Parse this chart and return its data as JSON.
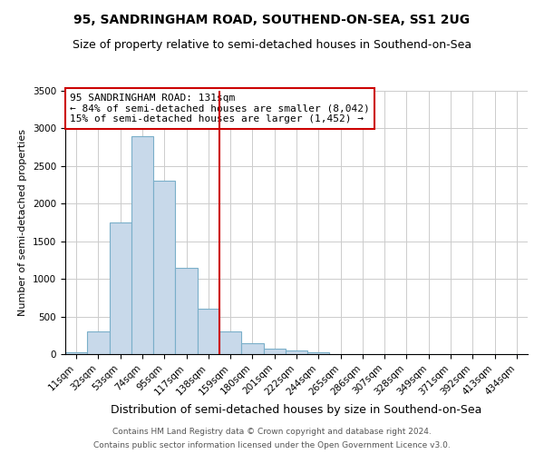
{
  "title": "95, SANDRINGHAM ROAD, SOUTHEND-ON-SEA, SS1 2UG",
  "subtitle": "Size of property relative to semi-detached houses in Southend-on-Sea",
  "xlabel": "Distribution of semi-detached houses by size in Southend-on-Sea",
  "ylabel": "Number of semi-detached properties",
  "footnote1": "Contains HM Land Registry data © Crown copyright and database right 2024.",
  "footnote2": "Contains public sector information licensed under the Open Government Licence v3.0.",
  "bar_labels": [
    "11sqm",
    "32sqm",
    "53sqm",
    "74sqm",
    "95sqm",
    "117sqm",
    "138sqm",
    "159sqm",
    "180sqm",
    "201sqm",
    "222sqm",
    "244sqm",
    "265sqm",
    "286sqm",
    "307sqm",
    "328sqm",
    "349sqm",
    "371sqm",
    "392sqm",
    "413sqm",
    "434sqm"
  ],
  "bar_values": [
    30,
    300,
    1750,
    2900,
    2300,
    1150,
    600,
    300,
    150,
    75,
    50,
    25,
    0,
    0,
    0,
    0,
    0,
    0,
    0,
    0,
    0
  ],
  "bar_color": "#c8d9ea",
  "bar_edgecolor": "#7aafc9",
  "vline_x": 6.5,
  "vline_color": "#cc0000",
  "annotation_text": "95 SANDRINGHAM ROAD: 131sqm\n← 84% of semi-detached houses are smaller (8,042)\n15% of semi-detached houses are larger (1,452) →",
  "annotation_box_edgecolor": "#cc0000",
  "annotation_box_facecolor": "#ffffff",
  "ylim": [
    0,
    3500
  ],
  "yticks": [
    0,
    500,
    1000,
    1500,
    2000,
    2500,
    3000,
    3500
  ],
  "background_color": "#ffffff",
  "grid_color": "#cccccc",
  "title_fontsize": 10,
  "subtitle_fontsize": 9,
  "ylabel_fontsize": 8,
  "xlabel_fontsize": 9,
  "tick_fontsize": 7.5,
  "annotation_fontsize": 8
}
